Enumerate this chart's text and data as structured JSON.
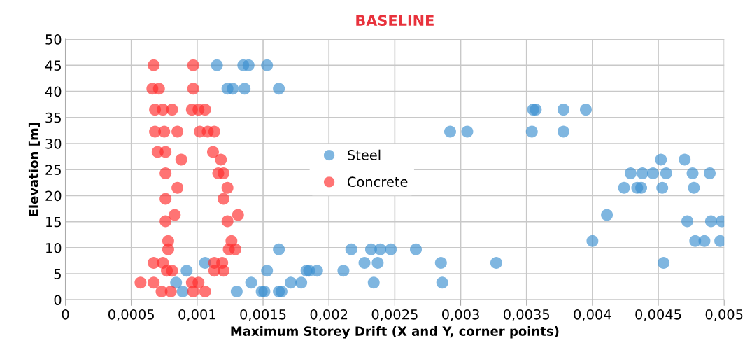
{
  "chart_data": {
    "type": "scatter",
    "title": "BASELINE",
    "xlabel": "Maximum Storey Drift (X and Y, corner points)",
    "ylabel": "Elevation [m]",
    "xlim": [
      0,
      0.005
    ],
    "ylim": [
      0,
      50
    ],
    "xticks": [
      {
        "value": 0,
        "label": "0"
      },
      {
        "value": 0.0005,
        "label": "0,0005"
      },
      {
        "value": 0.001,
        "label": "0,001"
      },
      {
        "value": 0.0015,
        "label": "0,0015"
      },
      {
        "value": 0.002,
        "label": "0,002"
      },
      {
        "value": 0.0025,
        "label": "0,0025"
      },
      {
        "value": 0.003,
        "label": "0,003"
      },
      {
        "value": 0.0035,
        "label": "0,0035"
      },
      {
        "value": 0.004,
        "label": "0,004"
      },
      {
        "value": 0.0045,
        "label": "0,0045"
      },
      {
        "value": 0.005,
        "label": "0,005"
      }
    ],
    "yticks": [
      0,
      5,
      10,
      15,
      20,
      25,
      30,
      35,
      40,
      45,
      50
    ],
    "grid": true,
    "legend": "center",
    "marker": "circle",
    "series": [
      {
        "name": "Steel",
        "color": "#3a8fd0",
        "x": [
          0.00115,
          0.00135,
          0.00139,
          0.00153,
          0.00123,
          0.00127,
          0.00136,
          0.00162,
          0.00355,
          0.00357,
          0.00378,
          0.00395,
          0.00292,
          0.00305,
          0.00354,
          0.00378,
          0.00452,
          0.0047,
          0.00429,
          0.00438,
          0.00446,
          0.00456,
          0.00476,
          0.00489,
          0.00424,
          0.00434,
          0.00437,
          0.00453,
          0.00477,
          0.00411,
          0.00472,
          0.0049,
          0.00498,
          0.004,
          0.00478,
          0.00485,
          0.00497,
          0.00162,
          0.00217,
          0.00232,
          0.00239,
          0.00247,
          0.00266,
          0.00106,
          0.00227,
          0.00237,
          0.00285,
          0.00327,
          0.00454,
          0.00092,
          0.00153,
          0.00183,
          0.00185,
          0.00191,
          0.00211,
          0.00084,
          0.00141,
          0.00171,
          0.00179,
          0.00234,
          0.00286,
          0.00089,
          0.0013,
          0.00149,
          0.00151,
          0.00162,
          0.00164
        ],
        "values": [
          45,
          45,
          45,
          45,
          40.5,
          40.5,
          40.5,
          40.5,
          36.5,
          36.5,
          36.5,
          36.5,
          32.3,
          32.3,
          32.3,
          32.3,
          26.9,
          26.9,
          24.3,
          24.3,
          24.3,
          24.3,
          24.3,
          24.3,
          21.5,
          21.5,
          21.5,
          21.5,
          21.5,
          16.3,
          15.1,
          15.1,
          15.1,
          11.3,
          11.3,
          11.3,
          11.3,
          9.7,
          9.7,
          9.7,
          9.7,
          9.7,
          9.7,
          7.1,
          7.1,
          7.1,
          7.1,
          7.1,
          7.1,
          5.6,
          5.6,
          5.6,
          5.6,
          5.6,
          5.6,
          3.3,
          3.3,
          3.3,
          3.3,
          3.3,
          3.3,
          1.6,
          1.6,
          1.6,
          1.6,
          1.6,
          1.6
        ]
      },
      {
        "name": "Concrete",
        "color": "#ff2a2a",
        "x": [
          0.00067,
          0.00097,
          0.00066,
          0.00071,
          0.00097,
          0.00068,
          0.00074,
          0.00081,
          0.00096,
          0.00101,
          0.00106,
          0.00068,
          0.00075,
          0.00085,
          0.00102,
          0.00108,
          0.00113,
          0.0007,
          0.00076,
          0.00112,
          0.00088,
          0.00118,
          0.00076,
          0.00116,
          0.0012,
          0.00085,
          0.00123,
          0.00076,
          0.0012,
          0.00083,
          0.00131,
          0.00076,
          0.00123,
          0.00078,
          0.00126,
          0.00078,
          0.00124,
          0.00129,
          0.00067,
          0.00074,
          0.00113,
          0.00119,
          0.00077,
          0.00081,
          0.00113,
          0.0012,
          0.00057,
          0.00067,
          0.00096,
          0.00101,
          0.00073,
          0.0008,
          0.00097,
          0.00106
        ],
        "values": [
          45,
          45,
          40.5,
          40.5,
          40.5,
          36.5,
          36.5,
          36.5,
          36.5,
          36.5,
          36.5,
          32.3,
          32.3,
          32.3,
          32.3,
          32.3,
          32.3,
          28.4,
          28.4,
          28.4,
          26.9,
          26.9,
          24.3,
          24.3,
          24.3,
          21.5,
          21.5,
          19.4,
          19.4,
          16.3,
          16.3,
          15.1,
          15.1,
          11.3,
          11.3,
          9.7,
          9.7,
          9.7,
          7.1,
          7.1,
          7.1,
          7.1,
          5.6,
          5.6,
          5.6,
          5.6,
          3.3,
          3.3,
          3.3,
          3.3,
          1.6,
          1.6,
          1.6,
          1.6
        ]
      }
    ]
  }
}
